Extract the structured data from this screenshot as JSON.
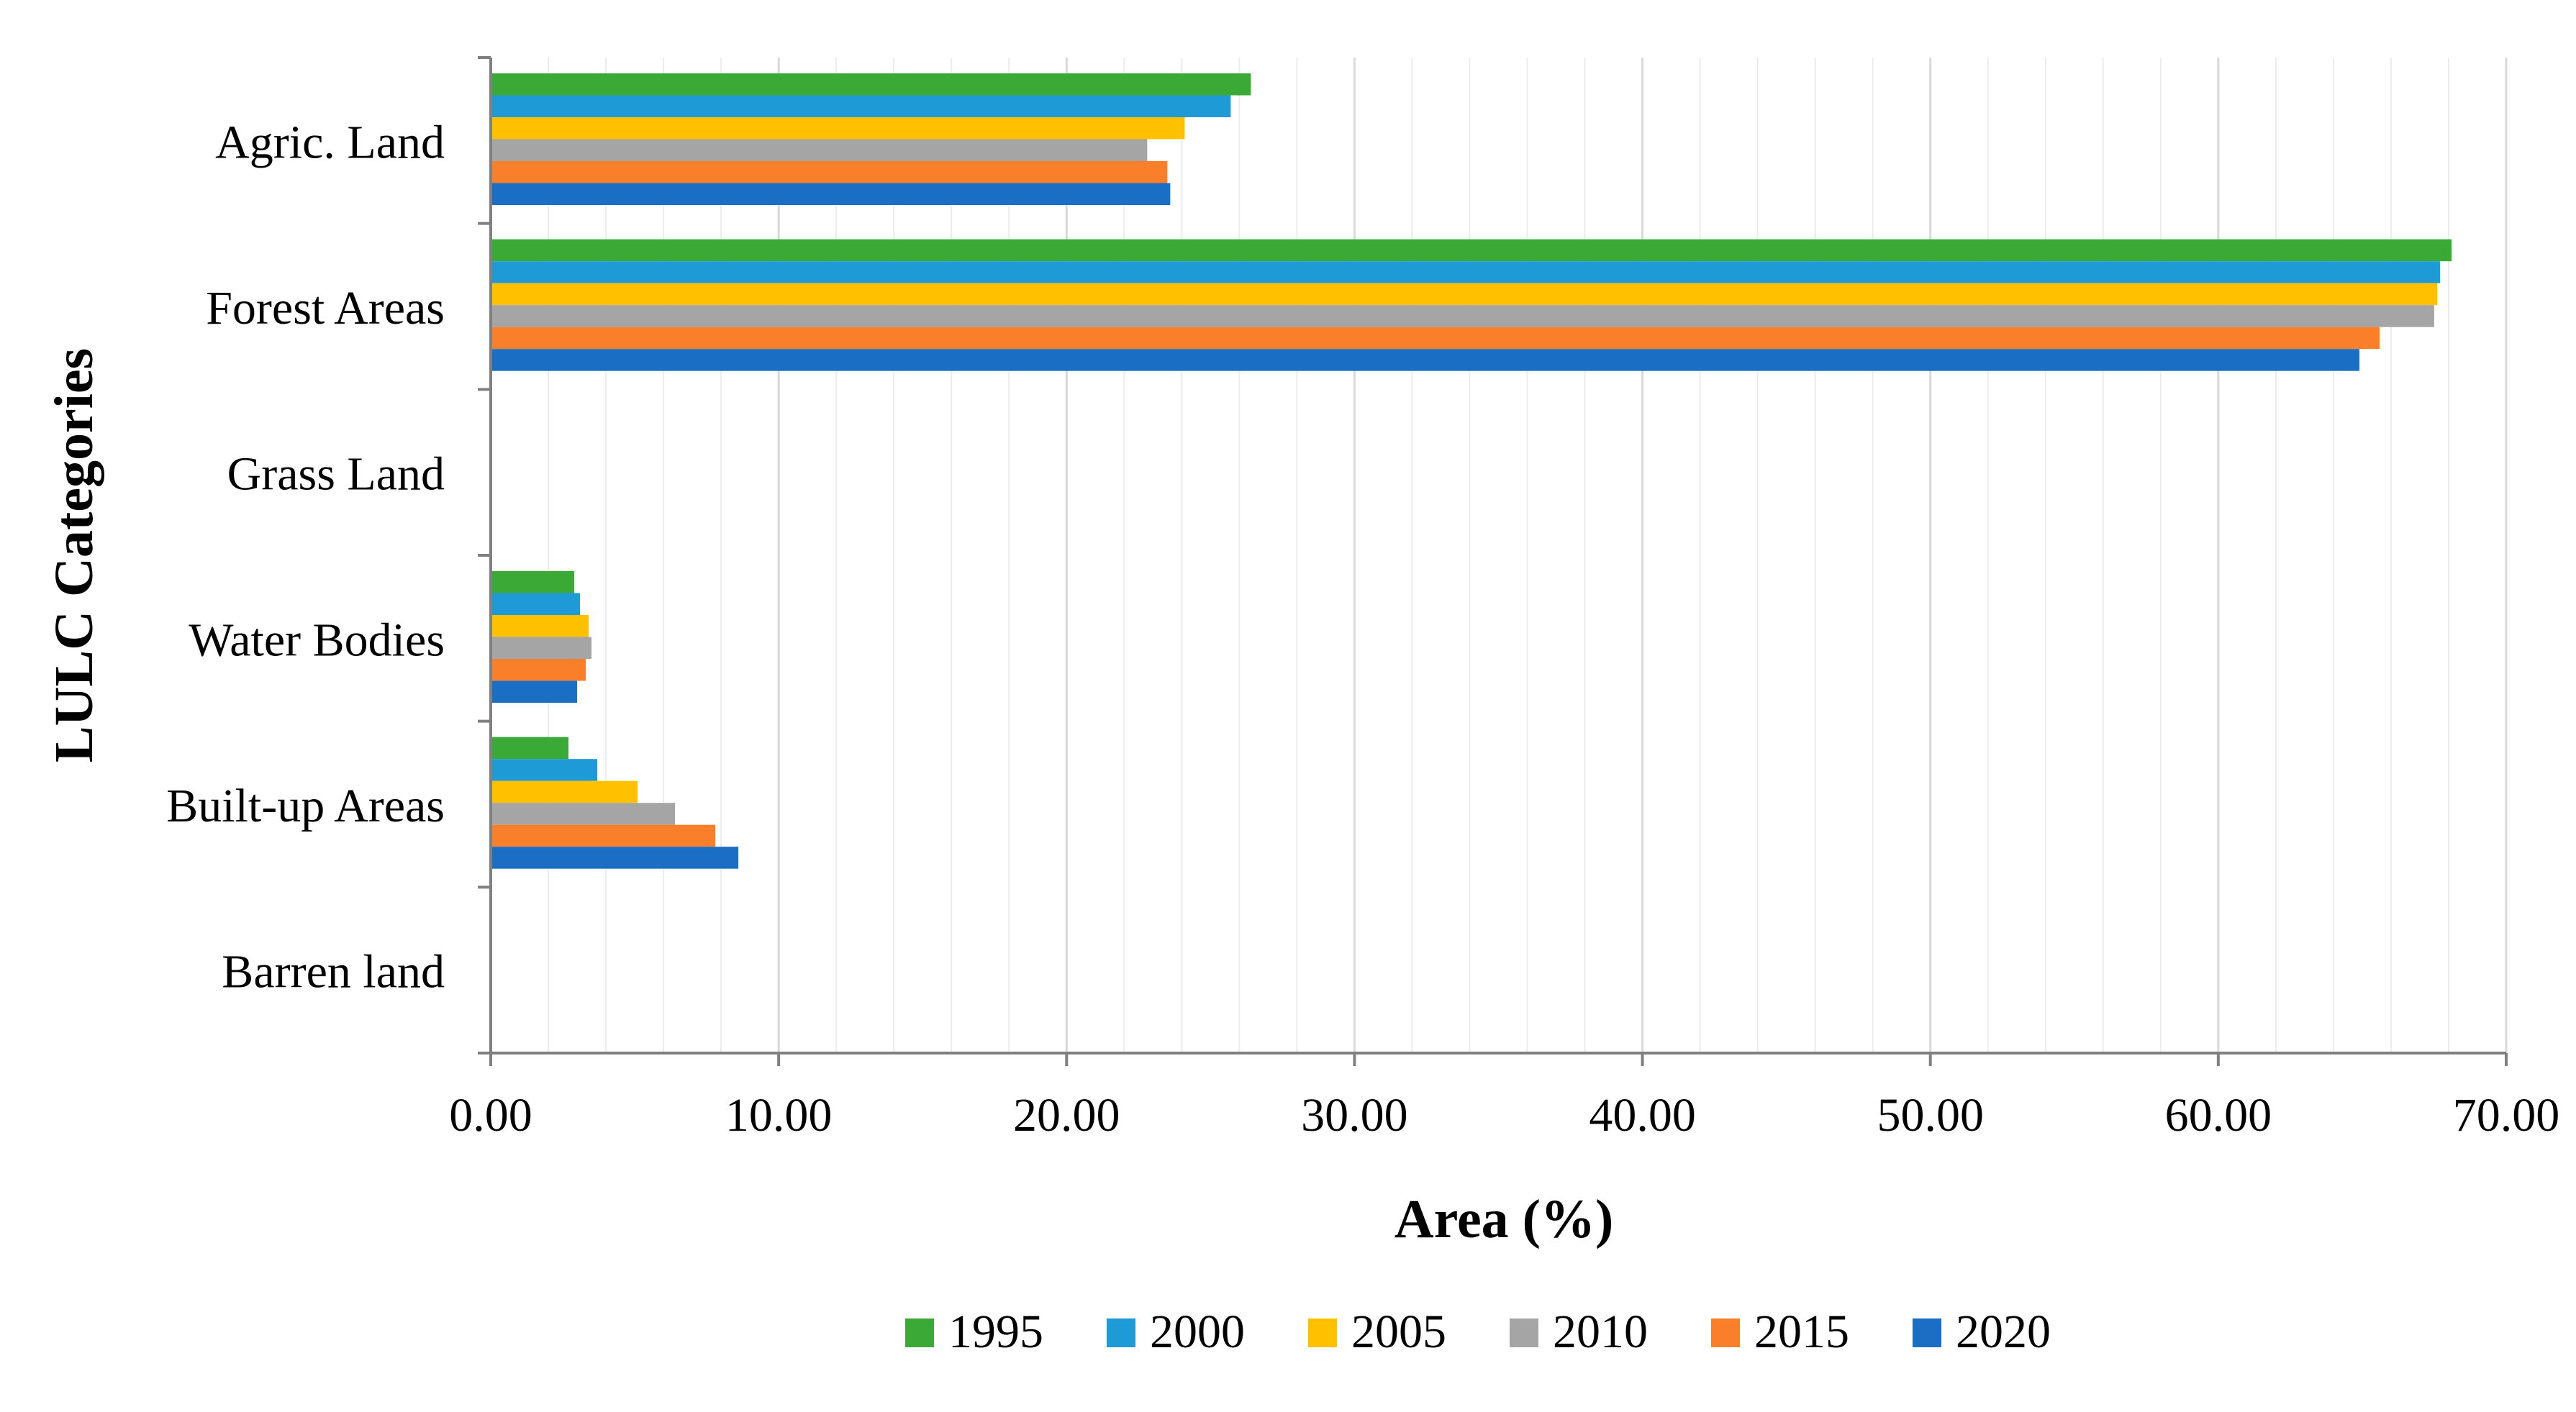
{
  "chart_data": {
    "type": "bar",
    "orientation": "horizontal",
    "categories": [
      "Agric. Land",
      "Forest Areas",
      "Grass Land",
      "Water Bodies",
      "Built-up Areas",
      "Barren land"
    ],
    "series": [
      {
        "name": "1995",
        "color": "#3aa935",
        "values": [
          26.4,
          68.1,
          0,
          2.9,
          2.7,
          0
        ]
      },
      {
        "name": "2000",
        "color": "#1e9bd7",
        "values": [
          25.7,
          67.7,
          0,
          3.1,
          3.7,
          0
        ]
      },
      {
        "name": "2005",
        "color": "#ffc000",
        "values": [
          24.1,
          67.6,
          0,
          3.4,
          5.1,
          0
        ]
      },
      {
        "name": "2010",
        "color": "#a5a5a5",
        "values": [
          22.8,
          67.5,
          0,
          3.5,
          6.4,
          0
        ]
      },
      {
        "name": "2015",
        "color": "#f97f2b",
        "values": [
          23.5,
          65.6,
          0,
          3.3,
          7.8,
          0
        ]
      },
      {
        "name": "2020",
        "color": "#1a6fc4",
        "values": [
          23.6,
          64.9,
          0,
          3.0,
          8.6,
          0
        ]
      }
    ],
    "xlim": [
      0,
      70
    ],
    "xticks": [
      "0.00",
      "10.00",
      "20.00",
      "30.00",
      "40.00",
      "50.00",
      "60.00",
      "70.00"
    ],
    "xlabel": "Area (%)",
    "ylabel": "LULC  Categories",
    "grid": "vertical major and minor",
    "legend": "bottom"
  }
}
